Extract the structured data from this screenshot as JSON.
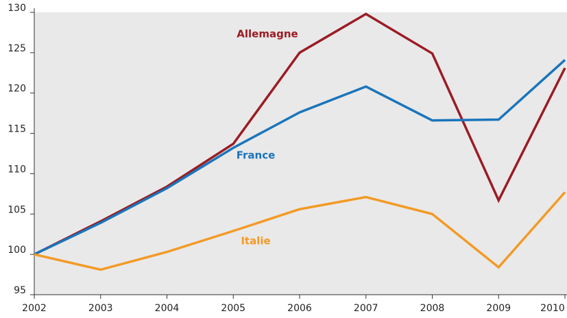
{
  "chart_data": {
    "type": "line",
    "categories": [
      "2002",
      "2003",
      "2004",
      "2005",
      "2006",
      "2007",
      "2008",
      "2009",
      "2010"
    ],
    "series": [
      {
        "name": "Allemagne",
        "color": "#9b1c24",
        "values": [
          100,
          104.1,
          108.4,
          113.7,
          125,
          129.8,
          124.9,
          106.7,
          123.1
        ]
      },
      {
        "name": "France",
        "color": "#1a75bb",
        "values": [
          100,
          103.9,
          108.2,
          113.2,
          117.6,
          120.8,
          116.6,
          116.7,
          124.1
        ]
      },
      {
        "name": "Italie",
        "color": "#f39a25",
        "values": [
          100,
          98.1,
          100.3,
          102.9,
          105.6,
          107.1,
          105,
          98.4,
          107.7
        ]
      }
    ],
    "ylim": [
      95,
      130
    ],
    "yticks": [
      95,
      100,
      105,
      110,
      115,
      120,
      125,
      130
    ],
    "grid": false
  }
}
